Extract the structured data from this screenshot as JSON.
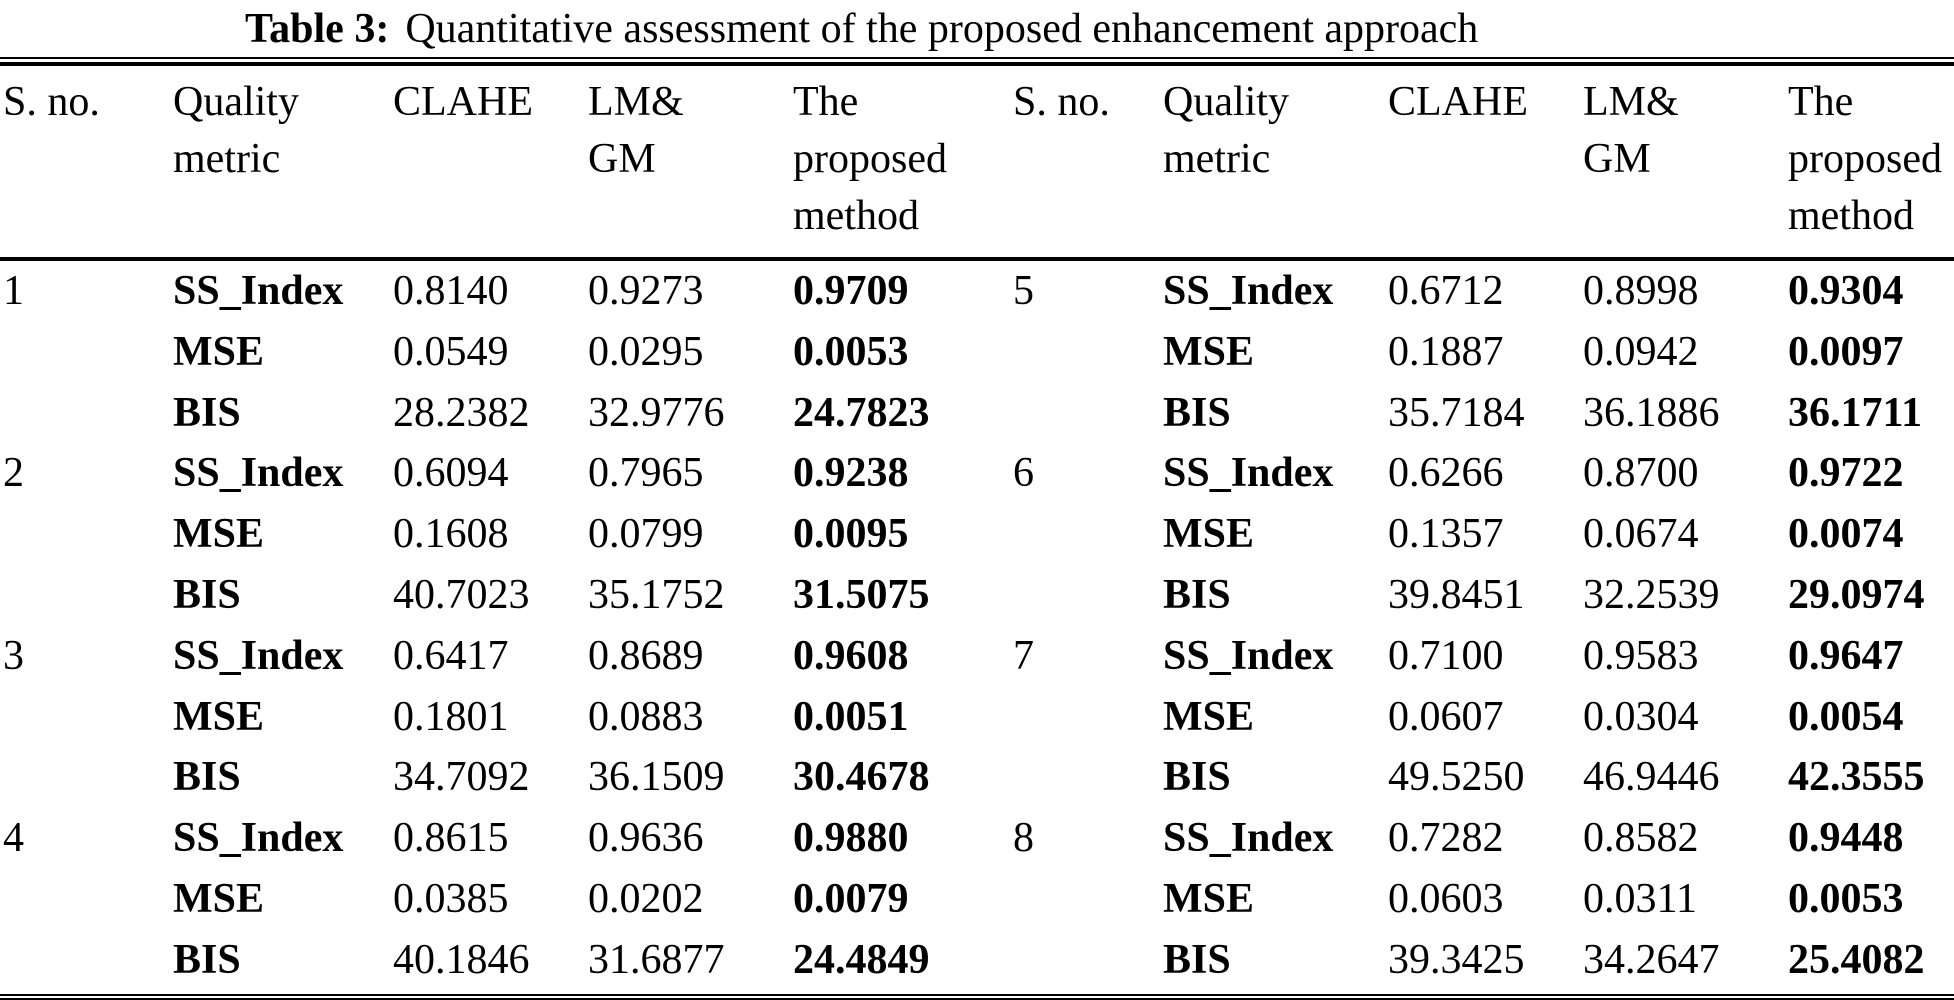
{
  "caption": {
    "label": "Table 3:",
    "text": "Quantitative assessment of the proposed enhancement approach"
  },
  "table": {
    "columns": [
      {
        "id": "sno",
        "lines": [
          "S. no."
        ]
      },
      {
        "id": "metric",
        "lines": [
          "Quality",
          "metric"
        ]
      },
      {
        "id": "clahe",
        "lines": [
          "CLAHE"
        ]
      },
      {
        "id": "lmgm",
        "lines": [
          "LM&",
          "GM"
        ]
      },
      {
        "id": "proposed",
        "lines": [
          "The",
          "proposed",
          "method"
        ]
      }
    ],
    "groups": [
      {
        "sno": "1",
        "rows": [
          {
            "metric": "SS_Index",
            "clahe": "0.8140",
            "lmgm": "0.9273",
            "proposed": "0.9709"
          },
          {
            "metric": "MSE",
            "clahe": "0.0549",
            "lmgm": "0.0295",
            "proposed": "0.0053"
          },
          {
            "metric": "BIS",
            "clahe": "28.2382",
            "lmgm": "32.9776",
            "proposed": "24.7823"
          }
        ]
      },
      {
        "sno": "2",
        "rows": [
          {
            "metric": "SS_Index",
            "clahe": "0.6094",
            "lmgm": "0.7965",
            "proposed": "0.9238"
          },
          {
            "metric": "MSE",
            "clahe": "0.1608",
            "lmgm": "0.0799",
            "proposed": "0.0095"
          },
          {
            "metric": "BIS",
            "clahe": "40.7023",
            "lmgm": "35.1752",
            "proposed": "31.5075"
          }
        ]
      },
      {
        "sno": "3",
        "rows": [
          {
            "metric": "SS_Index",
            "clahe": "0.6417",
            "lmgm": "0.8689",
            "proposed": "0.9608"
          },
          {
            "metric": "MSE",
            "clahe": "0.1801",
            "lmgm": "0.0883",
            "proposed": "0.0051"
          },
          {
            "metric": "BIS",
            "clahe": "34.7092",
            "lmgm": "36.1509",
            "proposed": "30.4678"
          }
        ]
      },
      {
        "sno": "4",
        "rows": [
          {
            "metric": "SS_Index",
            "clahe": "0.8615",
            "lmgm": "0.9636",
            "proposed": "0.9880"
          },
          {
            "metric": "MSE",
            "clahe": "0.0385",
            "lmgm": "0.0202",
            "proposed": "0.0079"
          },
          {
            "metric": "BIS",
            "clahe": "40.1846",
            "lmgm": "31.6877",
            "proposed": "24.4849"
          }
        ]
      },
      {
        "sno": "5",
        "rows": [
          {
            "metric": "SS_Index",
            "clahe": "0.6712",
            "lmgm": "0.8998",
            "proposed": "0.9304"
          },
          {
            "metric": "MSE",
            "clahe": "0.1887",
            "lmgm": "0.0942",
            "proposed": "0.0097"
          },
          {
            "metric": "BIS",
            "clahe": "35.7184",
            "lmgm": "36.1886",
            "proposed": "36.1711"
          }
        ]
      },
      {
        "sno": "6",
        "rows": [
          {
            "metric": "SS_Index",
            "clahe": "0.6266",
            "lmgm": "0.8700",
            "proposed": "0.9722"
          },
          {
            "metric": "MSE",
            "clahe": "0.1357",
            "lmgm": "0.0674",
            "proposed": "0.0074"
          },
          {
            "metric": "BIS",
            "clahe": "39.8451",
            "lmgm": "32.2539",
            "proposed": "29.0974"
          }
        ]
      },
      {
        "sno": "7",
        "rows": [
          {
            "metric": "SS_Index",
            "clahe": "0.7100",
            "lmgm": "0.9583",
            "proposed": "0.9647"
          },
          {
            "metric": "MSE",
            "clahe": "0.0607",
            "lmgm": "0.0304",
            "proposed": "0.0054"
          },
          {
            "metric": "BIS",
            "clahe": "49.5250",
            "lmgm": "46.9446",
            "proposed": "42.3555"
          }
        ]
      },
      {
        "sno": "8",
        "rows": [
          {
            "metric": "SS_Index",
            "clahe": "0.7282",
            "lmgm": "0.8582",
            "proposed": "0.9448"
          },
          {
            "metric": "MSE",
            "clahe": "0.0603",
            "lmgm": "0.0311",
            "proposed": "0.0053"
          },
          {
            "metric": "BIS",
            "clahe": "39.3425",
            "lmgm": "34.2647",
            "proposed": "25.4082"
          }
        ]
      }
    ]
  }
}
